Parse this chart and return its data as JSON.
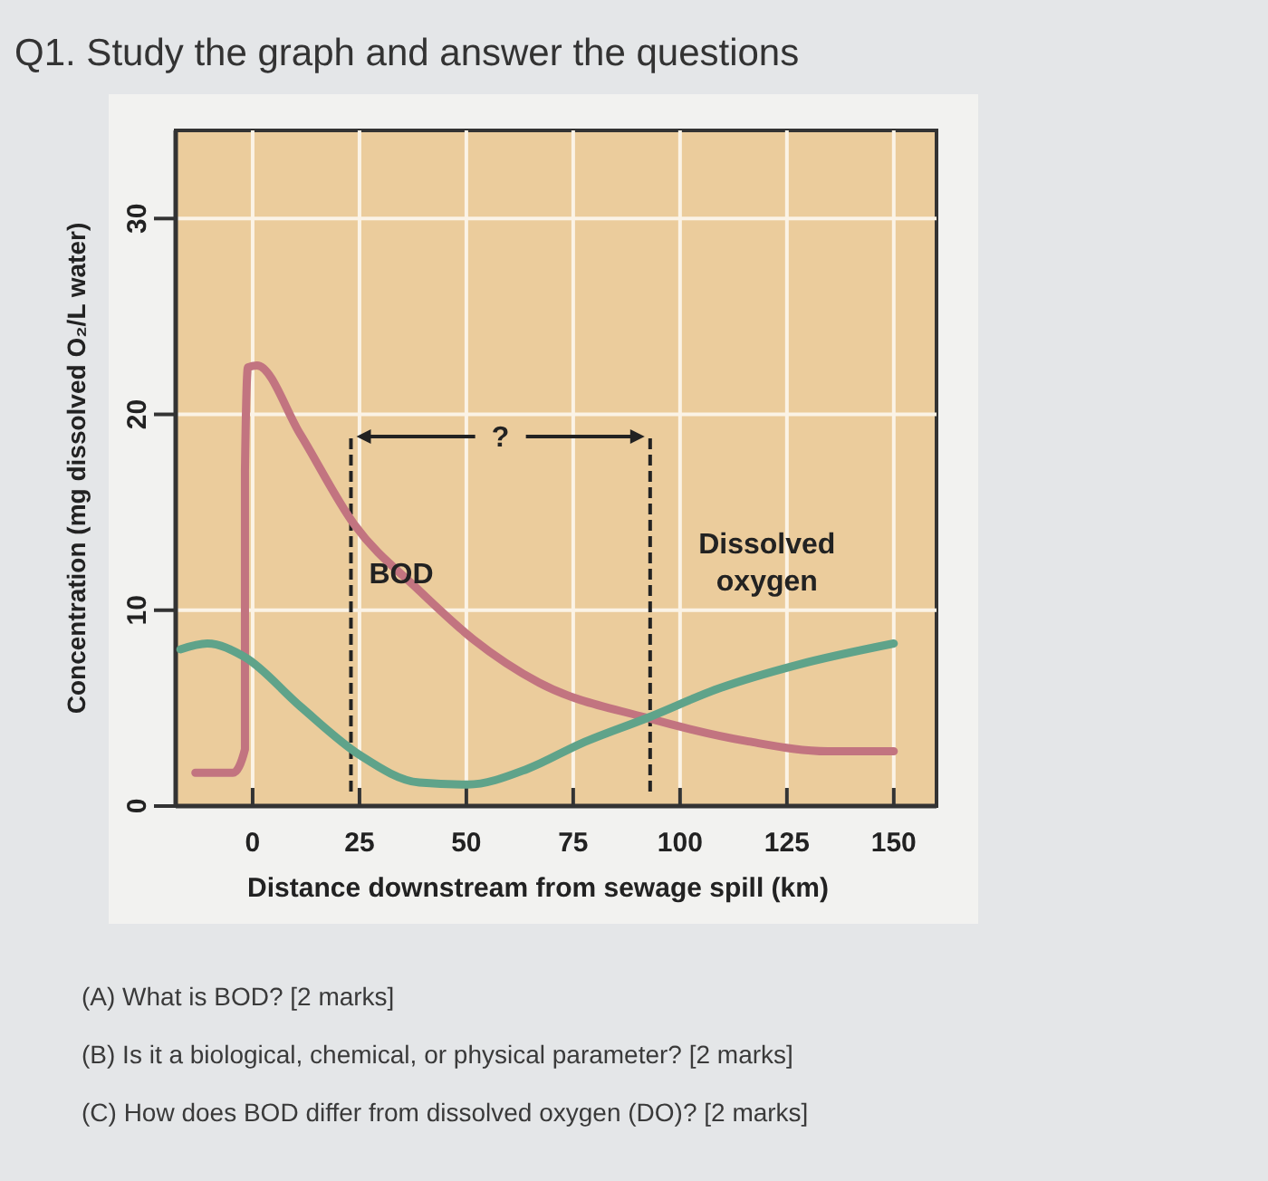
{
  "chart_data": {
    "type": "line",
    "title": "Q1. Study the graph and answer the questions",
    "xlabel": "Distance downstream from sewage spill (km)",
    "ylabel": "Concentration (mg dissolved O₂/L water)",
    "xlim": [
      -18,
      160
    ],
    "ylim": [
      0,
      34.5
    ],
    "xticks": [
      0,
      25,
      50,
      75,
      100,
      125,
      150
    ],
    "yticks": [
      0,
      10,
      20,
      30
    ],
    "grid": true,
    "series": [
      {
        "name": "BOD",
        "color": "#c27480",
        "x": [
          -13.4,
          -4.6,
          -1.8,
          -1.8,
          -1.1,
          1,
          11.1,
          23.7,
          39,
          51.7,
          67,
          92.3,
          116,
          134.5,
          150
        ],
        "values": [
          1.7,
          1.7,
          2.9,
          17.1,
          22.4,
          22.5,
          19,
          14.4,
          11,
          8.5,
          6.3,
          4.5,
          3.3,
          2.8,
          2.8
        ]
      },
      {
        "name": "Dissolved oxygen",
        "color": "#5fa38a",
        "x": [
          -16.9,
          -10.6,
          -1.8,
          11.1,
          25.1,
          39,
          50.3,
          64.3,
          76.9,
          92.3,
          109,
          127.3,
          150
        ],
        "values": [
          8.0,
          8.3,
          7.6,
          5.1,
          2.6,
          1.2,
          1.1,
          1.9,
          3.2,
          4.5,
          6,
          7.2,
          8.3
        ]
      }
    ],
    "ref_lines": [
      {
        "axis": "x",
        "value": 23,
        "line_style": "dashed",
        "color": "#222222"
      },
      {
        "axis": "x",
        "value": 93,
        "line_style": "dashed",
        "color": "#222222"
      }
    ],
    "annotations": [
      "?",
      "(A) What is BOD? [2 marks]",
      "(B) Is it a biological, chemical, or physical parameter? [2 marks]",
      "(C) How does BOD differ from dissolved oxygen (DO)? [2 marks]"
    ]
  }
}
